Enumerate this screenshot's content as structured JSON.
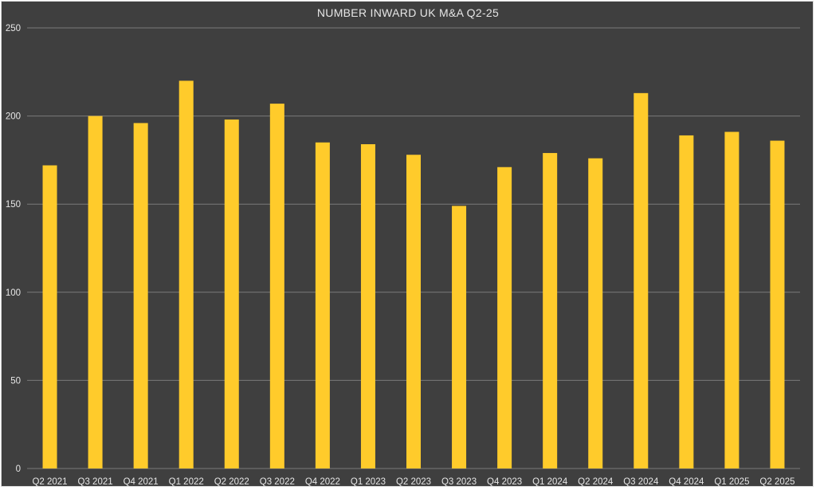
{
  "chart_data": {
    "type": "bar",
    "title": "NUMBER INWARD UK M&A Q2-25",
    "xlabel": "",
    "ylabel": "",
    "categories": [
      "Q2 2021",
      "Q3 2021",
      "Q4 2021",
      "Q1 2022",
      "Q2 2022",
      "Q3 2022",
      "Q4 2022",
      "Q1 2023",
      "Q2 2023",
      "Q3 2023",
      "Q4 2023",
      "Q1 2024",
      "Q2 2024",
      "Q3 2024",
      "Q4 2024",
      "Q1 2025",
      "Q2 2025"
    ],
    "values": [
      172,
      200,
      196,
      220,
      198,
      207,
      185,
      184,
      178,
      149,
      171,
      179,
      176,
      213,
      189,
      191,
      186
    ],
    "ylim": [
      0,
      250
    ],
    "yticks": [
      0,
      50,
      100,
      150,
      200,
      250
    ],
    "grid": true,
    "legend": "none",
    "colors": {
      "background": "#3f3f3f",
      "bar": "#ffcb2b",
      "gridline": "#7a7a7a",
      "text": "#e6e6e6"
    }
  }
}
